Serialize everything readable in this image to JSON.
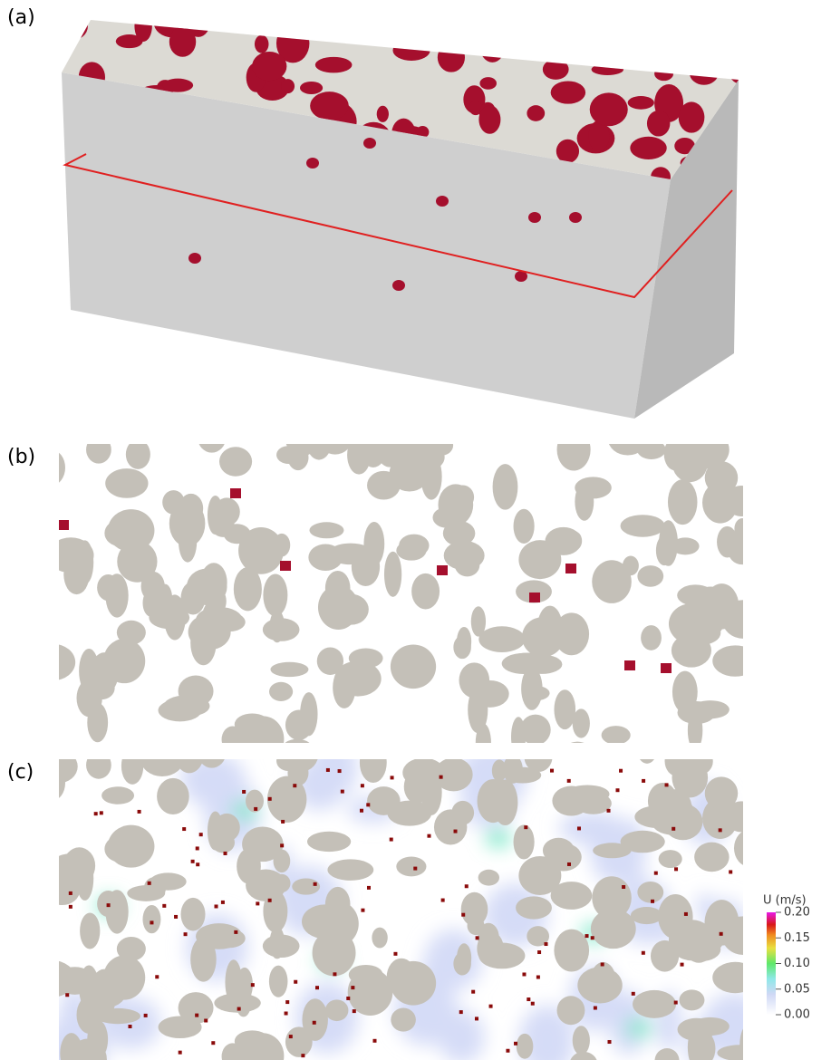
{
  "panels": [
    {
      "label": "(a)"
    },
    {
      "label": "(b)"
    },
    {
      "label": "(c)"
    }
  ],
  "colorbar": {
    "title": "U (m/s)",
    "lim": [
      0,
      0.2
    ],
    "ticks": [
      {
        "value": 0,
        "label": "0.00"
      },
      {
        "value": 0.05,
        "label": "0.05"
      },
      {
        "value": 0.1,
        "label": "0.10"
      },
      {
        "value": 0.15,
        "label": "0.15"
      },
      {
        "value": 0.2,
        "label": "0.20"
      }
    ]
  }
}
